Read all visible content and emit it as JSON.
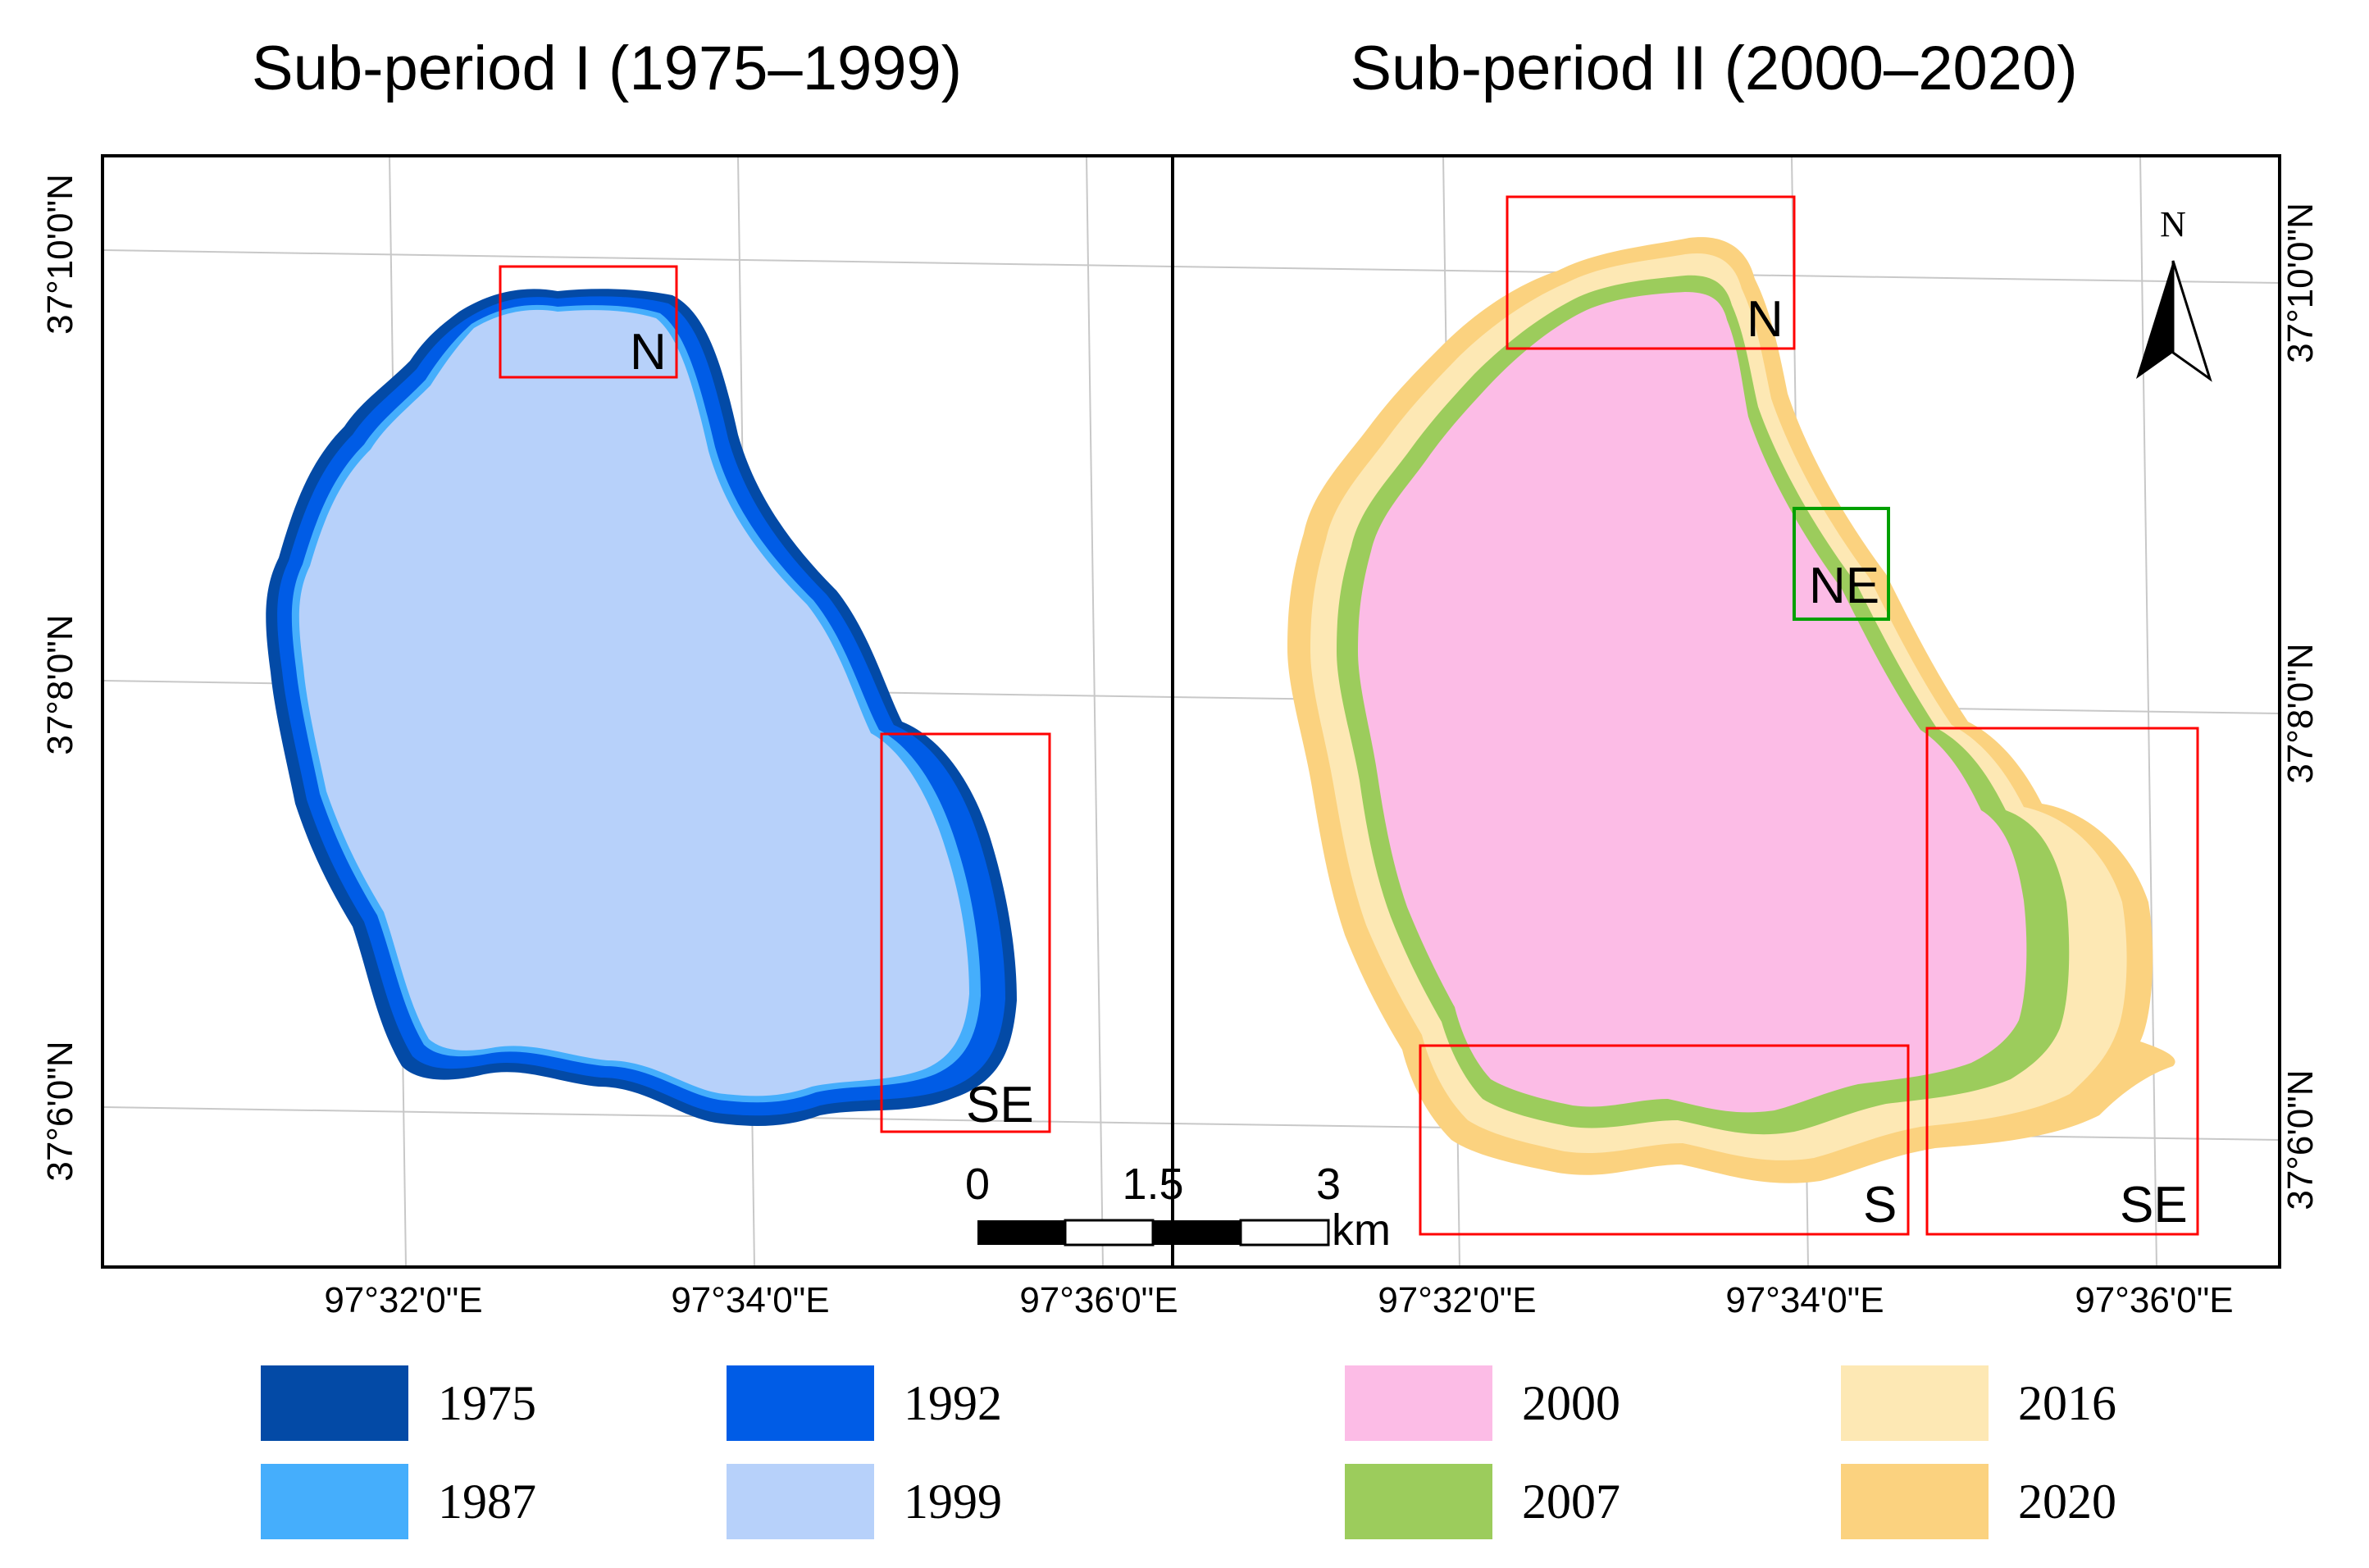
{
  "panels": [
    {
      "title": "Sub-period I (1975–1999)",
      "boxes": [
        {
          "label": "N",
          "color": "#ff0000"
        },
        {
          "label": "SE",
          "color": "#ff0000"
        }
      ]
    },
    {
      "title": "Sub-period II (2000–2020)",
      "boxes": [
        {
          "label": "N",
          "color": "#ff0000"
        },
        {
          "label": "NE",
          "color": "#00a000"
        },
        {
          "label": "S",
          "color": "#ff0000"
        },
        {
          "label": "SE",
          "color": "#ff0000"
        }
      ]
    }
  ],
  "axes": {
    "lon_labels": [
      "97°32'0\"E",
      "97°34'0\"E",
      "97°36'0\"E"
    ],
    "lat_labels": [
      "37°10'0\"N",
      "37°8'0\"N",
      "37°6'0\"N"
    ]
  },
  "north_arrow": {
    "label": "N"
  },
  "scale_bar": {
    "ticks": [
      "0",
      "1.5",
      "3"
    ],
    "unit": "km"
  },
  "legend": {
    "panel1": [
      {
        "year": "1975",
        "color": "#034aa6"
      },
      {
        "year": "1992",
        "color": "#005ce6"
      },
      {
        "year": "1987",
        "color": "#45aefc"
      },
      {
        "year": "1999",
        "color": "#b7d1fa"
      }
    ],
    "panel2": [
      {
        "year": "2000",
        "color": "#fcbce6"
      },
      {
        "year": "2016",
        "color": "#fde8b4"
      },
      {
        "year": "2007",
        "color": "#9ccc5c"
      },
      {
        "year": "2020",
        "color": "#fbd27f"
      }
    ]
  }
}
